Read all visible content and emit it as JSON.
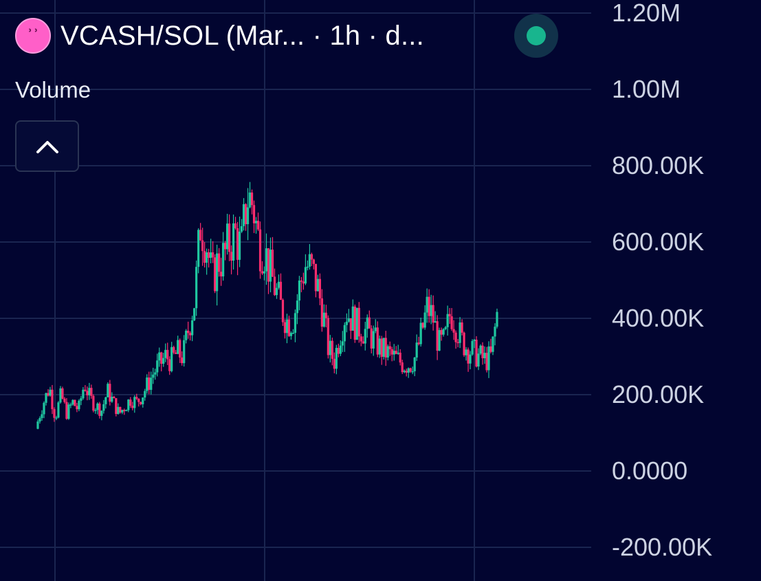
{
  "header": {
    "pair_title": "VCASH/SOL (Mar... · 1h · d...",
    "status_color": "#18b58e",
    "logo_icon": "pink-ghost-token-icon"
  },
  "study": {
    "label": "Volume",
    "collapse_icon": "chevron-up-icon"
  },
  "colors": {
    "background": "#020530",
    "grid": "#1a2550",
    "up": "#1fc7a0",
    "down": "#ff2d6e"
  },
  "chart_data": {
    "type": "candlestick",
    "interval": "1h",
    "ylim": [
      -200000,
      1200000
    ],
    "y_ticks": [
      {
        "value": 1200000,
        "label": "1.20M"
      },
      {
        "value": 1000000,
        "label": "1.00M"
      },
      {
        "value": 800000,
        "label": "800.00K"
      },
      {
        "value": 600000,
        "label": "600.00K"
      },
      {
        "value": 400000,
        "label": "400.00K"
      },
      {
        "value": 200000,
        "label": "200.00K"
      },
      {
        "value": 0,
        "label": "0.0000"
      },
      {
        "value": -200000,
        "label": "-200.00K"
      }
    ],
    "grid": true,
    "close_path": [
      130000,
      180000,
      220000,
      140000,
      200000,
      150000,
      180000,
      160000,
      230000,
      190000,
      170000,
      160000,
      210000,
      180000,
      150000,
      170000,
      190000,
      180000,
      200000,
      230000,
      260000,
      280000,
      300000,
      290000,
      310000,
      300000,
      380000,
      450000,
      650000,
      600000,
      500000,
      550000,
      560000,
      600000,
      620000,
      580000,
      720000,
      700000,
      600000,
      580000,
      520000,
      470000,
      420000,
      390000,
      400000,
      480000,
      540000,
      530000,
      490000,
      420000,
      320000,
      290000,
      360000,
      420000,
      400000,
      380000,
      370000,
      360000,
      340000,
      320000,
      310000,
      300000,
      290000,
      280000,
      280000,
      300000,
      360000,
      430000,
      400000,
      330000,
      340000,
      420000,
      380000,
      340000,
      320000,
      310000,
      300000,
      290000,
      300000,
      410000
    ]
  }
}
